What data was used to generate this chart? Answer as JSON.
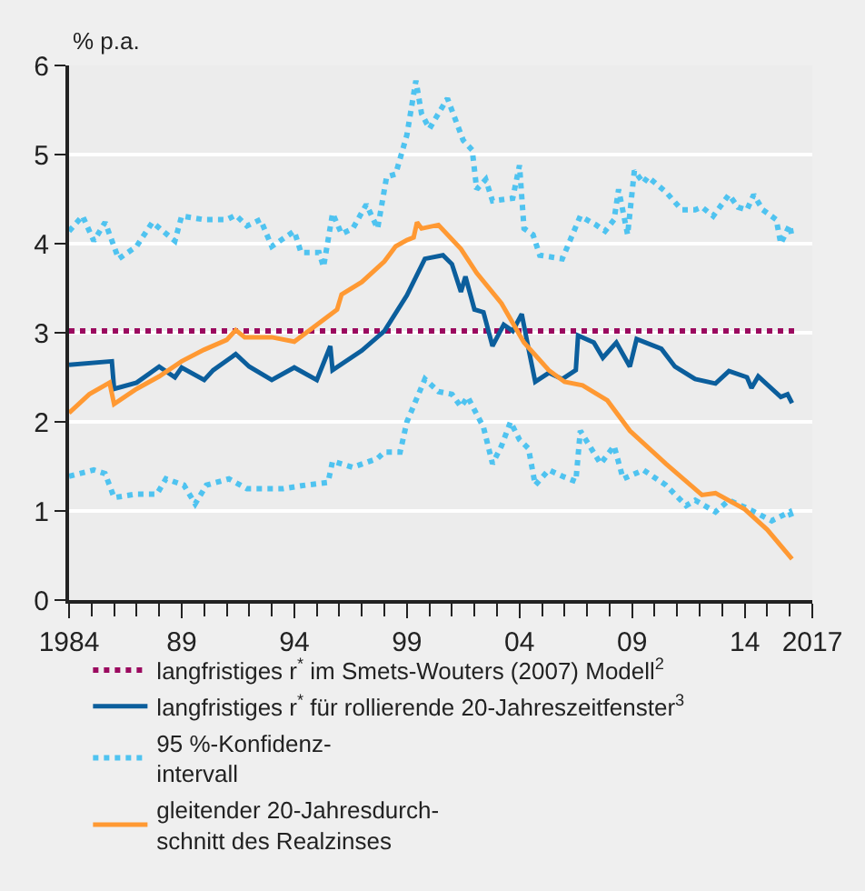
{
  "chart_data": {
    "type": "line",
    "ylabel": "% p.a.",
    "xlim": [
      1984,
      2017
    ],
    "xticks": [
      {
        "value": 1984,
        "label": "1984"
      },
      {
        "value": 1989,
        "label": "89"
      },
      {
        "value": 1994,
        "label": "94"
      },
      {
        "value": 1999,
        "label": "99"
      },
      {
        "value": 2004,
        "label": "04"
      },
      {
        "value": 2009,
        "label": "09"
      },
      {
        "value": 2014,
        "label": "14"
      },
      {
        "value": 2017,
        "label": "2017"
      }
    ],
    "ylim": [
      0,
      6
    ],
    "yticks": [
      0,
      1,
      2,
      3,
      4,
      5,
      6
    ],
    "grid": "y",
    "legend": "bottom",
    "marker": "none",
    "series": [
      {
        "name": "langfristiges r$^{*}$ im Smets-Wouters (2007) Modell$^{2}$",
        "color": "#9b0a5f",
        "line_style": "dotted",
        "x": [
          1984,
          2016.2
        ],
        "values": [
          3.02,
          3.02
        ]
      },
      {
        "name": "langfristiges r$^{*}$ für rollierende 20-Jahreszeitfenster$^{3}$",
        "color": "#0b5e9c",
        "line_style": "solid",
        "x": [
          1984.0,
          1985.9,
          1986.0,
          1987.0,
          1988.0,
          1988.7,
          1989.0,
          1990.0,
          1990.4,
          1991.4,
          1992.0,
          1993.0,
          1994.0,
          1995.0,
          1995.6,
          1995.7,
          1997.0,
          1998.0,
          1999.0,
          1999.8,
          2000.6,
          2001.0,
          2001.4,
          2001.6,
          2002.0,
          2002.4,
          2002.8,
          2003.3,
          2003.7,
          2004.1,
          2004.4,
          2004.7,
          2005.3,
          2005.9,
          2006.5,
          2006.6,
          2007.3,
          2007.7,
          2008.3,
          2008.9,
          2009.2,
          2010.3,
          2010.9,
          2011.8,
          2012.7,
          2013.3,
          2014.1,
          2014.3,
          2014.6,
          2015.6,
          2015.9,
          2016.1
        ],
        "values": [
          2.64,
          2.68,
          2.37,
          2.44,
          2.62,
          2.5,
          2.61,
          2.47,
          2.58,
          2.76,
          2.62,
          2.47,
          2.61,
          2.47,
          2.85,
          2.58,
          2.8,
          3.02,
          3.42,
          3.83,
          3.87,
          3.77,
          3.46,
          3.63,
          3.26,
          3.23,
          2.85,
          3.09,
          3.02,
          3.21,
          2.82,
          2.45,
          2.55,
          2.48,
          2.58,
          2.97,
          2.89,
          2.72,
          2.89,
          2.62,
          2.93,
          2.82,
          2.62,
          2.48,
          2.43,
          2.57,
          2.5,
          2.38,
          2.51,
          2.28,
          2.31,
          2.21
        ]
      },
      {
        "name": "95 %-Konfidenz-\nintervall",
        "color": "#4fc3f0",
        "line_style": "dotted",
        "x": [
          1984.0,
          1984.6,
          1985.1,
          1985.6,
          1986.2,
          1987.0,
          1987.7,
          1988.7,
          1989.0,
          1990.0,
          1991.0,
          1991.4,
          1991.9,
          1992.5,
          1993.0,
          1994.0,
          1994.3,
          1995.1,
          1995.3,
          1995.7,
          1996.1,
          1996.6,
          1997.2,
          1997.7,
          1998.1,
          1998.5,
          1999.0,
          1999.4,
          1999.65,
          2000.0,
          2000.8,
          2001.5,
          2001.9,
          2002.1,
          2002.5,
          2002.8,
          2003.7,
          2004.0,
          2004.2,
          2004.6,
          2004.9,
          2005.9,
          2006.7,
          2007.4,
          2007.8,
          2008.2,
          2008.4,
          2008.8,
          2009.1,
          2009.5,
          2009.7,
          2010.5,
          2011.2,
          2011.8,
          2012.1,
          2012.6,
          2013.3,
          2013.7,
          2014.1,
          2014.4,
          2014.8,
          2015.4,
          2015.6,
          2016.0,
          2016.1
        ],
        "values": [
          4.14,
          4.31,
          4.03,
          4.24,
          3.83,
          3.97,
          4.24,
          4.03,
          4.31,
          4.27,
          4.27,
          4.32,
          4.2,
          4.27,
          3.97,
          4.14,
          3.9,
          3.9,
          3.74,
          4.34,
          4.11,
          4.17,
          4.44,
          4.17,
          4.75,
          4.78,
          5.22,
          5.83,
          5.46,
          5.29,
          5.63,
          5.16,
          5.05,
          4.61,
          4.72,
          4.48,
          4.51,
          4.88,
          4.17,
          4.1,
          3.87,
          3.83,
          4.31,
          4.21,
          4.14,
          4.27,
          4.61,
          4.1,
          4.82,
          4.68,
          4.75,
          4.58,
          4.38,
          4.38,
          4.41,
          4.31,
          4.55,
          4.41,
          4.38,
          4.55,
          4.38,
          4.27,
          4.0,
          4.21,
          4.07
        ]
      },
      {
        "color": "#4fc3f0",
        "line_style": "dotted",
        "x": [
          1984.0,
          1985.1,
          1985.6,
          1986.0,
          1987.0,
          1987.9,
          1988.3,
          1989.1,
          1989.6,
          1990.1,
          1991.1,
          1991.9,
          1993.5,
          1994.5,
          1995.5,
          1995.7,
          1996.6,
          1997.7,
          1998.0,
          1998.7,
          1999.0,
          1999.8,
          2000.4,
          2001.0,
          2001.4,
          2001.7,
          2002.4,
          2002.8,
          2003.2,
          2003.6,
          2004.0,
          2004.4,
          2004.7,
          2005.3,
          2005.9,
          2006.5,
          2006.7,
          2007.6,
          2008.2,
          2008.6,
          2009.5,
          2010.5,
          2011.4,
          2011.8,
          2012.7,
          2013.3,
          2014.2,
          2015.2,
          2016.0,
          2016.1
        ],
        "values": [
          1.39,
          1.46,
          1.42,
          1.15,
          1.19,
          1.19,
          1.36,
          1.29,
          1.08,
          1.29,
          1.36,
          1.25,
          1.25,
          1.29,
          1.32,
          1.56,
          1.49,
          1.59,
          1.66,
          1.66,
          2.0,
          2.48,
          2.34,
          2.31,
          2.17,
          2.28,
          1.94,
          1.53,
          1.73,
          2.0,
          1.8,
          1.7,
          1.29,
          1.46,
          1.39,
          1.33,
          1.9,
          1.53,
          1.73,
          1.36,
          1.46,
          1.29,
          1.06,
          1.12,
          0.99,
          1.12,
          1.02,
          0.89,
          0.99,
          0.92
        ]
      },
      {
        "name": "gleitender 20-Jahresdurch-\nschnitt des Realzinses",
        "color": "#ff9933",
        "line_style": "solid",
        "x": [
          1984.0,
          1984.9,
          1985.8,
          1986.0,
          1987.0,
          1988.0,
          1989.0,
          1990.0,
          1991.0,
          1991.4,
          1991.8,
          1993.0,
          1994.0,
          1995.0,
          1995.9,
          1996.1,
          1997.0,
          1998.0,
          1998.5,
          1999.0,
          1999.3,
          1999.45,
          1999.65,
          2000.4,
          2001.4,
          2002.1,
          2003.2,
          2004.2,
          2005.3,
          2006.0,
          2006.8,
          2007.9,
          2008.9,
          2010.5,
          2012.1,
          2012.7,
          2014.0,
          2015.0,
          2016.1
        ],
        "values": [
          2.1,
          2.31,
          2.44,
          2.2,
          2.37,
          2.51,
          2.68,
          2.81,
          2.92,
          3.03,
          2.95,
          2.95,
          2.9,
          3.09,
          3.26,
          3.43,
          3.57,
          3.8,
          3.97,
          4.04,
          4.07,
          4.24,
          4.17,
          4.21,
          3.94,
          3.67,
          3.33,
          2.89,
          2.58,
          2.45,
          2.41,
          2.24,
          1.9,
          1.53,
          1.18,
          1.2,
          1.02,
          0.79,
          0.46
        ]
      }
    ]
  }
}
